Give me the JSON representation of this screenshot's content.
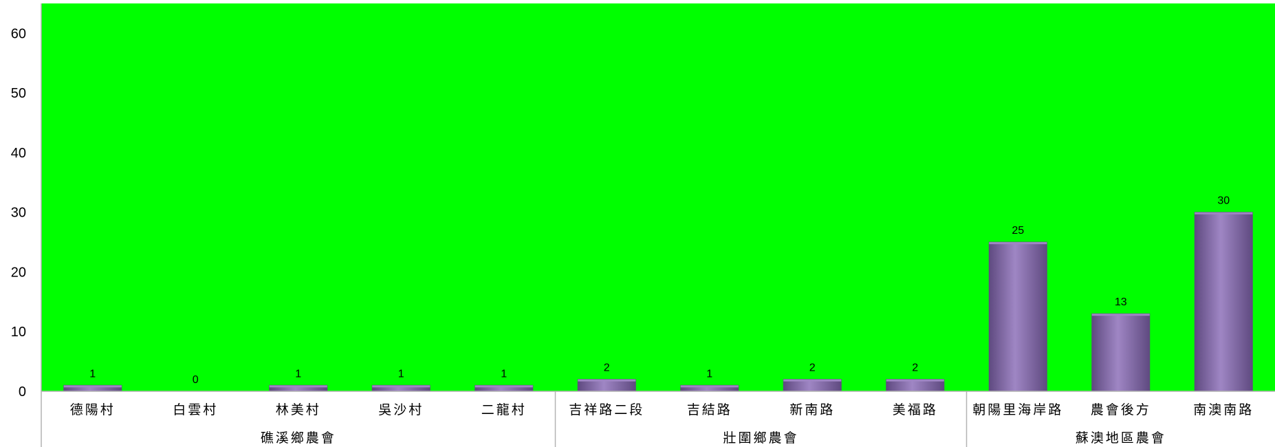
{
  "colors": {
    "plot_bg": "#00ff00",
    "bar_fill": "#8064a2",
    "bar_light": "#9f86c4",
    "bar_dark": "#5f4a80",
    "axis": "#b3b3b3",
    "text": "#000000"
  },
  "chart_data": {
    "type": "bar",
    "title": "",
    "xlabel": "",
    "ylabel": "",
    "ylim": [
      0,
      65
    ],
    "yticks": [
      0,
      10,
      20,
      30,
      40,
      50,
      60
    ],
    "grid": false,
    "legend": "none",
    "categories": [
      "德陽村",
      "白雲村",
      "林美村",
      "吳沙村",
      "二龍村",
      "吉祥路二段",
      "吉結路",
      "新南路",
      "美福路",
      "朝陽里海岸路",
      "農會後方",
      "南澳南路"
    ],
    "values": [
      1,
      0,
      1,
      1,
      1,
      2,
      1,
      2,
      2,
      25,
      13,
      30
    ],
    "data_labels": [
      "1",
      "0",
      "1",
      "1",
      "1",
      "2",
      "1",
      "2",
      "2",
      "25",
      "13",
      "30"
    ],
    "groups": [
      {
        "name": "礁溪鄉農會",
        "count": 5
      },
      {
        "name": "壯圍鄉農會",
        "count": 4
      },
      {
        "name": "蘇澳地區農會",
        "count": 3
      }
    ]
  }
}
